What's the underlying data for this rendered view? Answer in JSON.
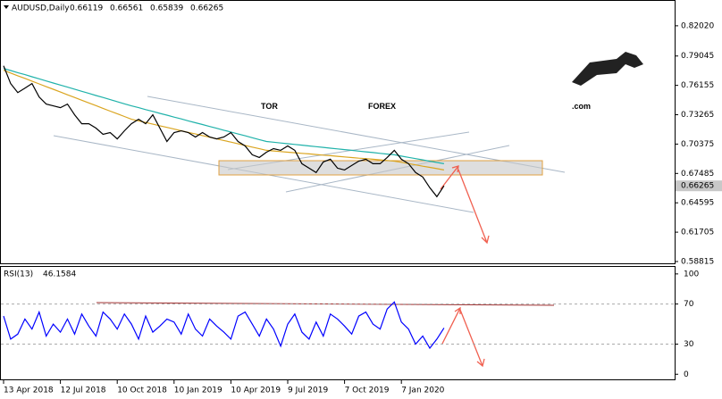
{
  "chart_data": [
    {
      "type": "line",
      "title": "AUDUSD,Daily",
      "ohlc": [
        0.66119,
        0.66561,
        0.65839,
        0.66265
      ],
      "watermark": [
        "TOR",
        "FOREX",
        ".com"
      ],
      "categories": [
        "13 Apr 2018",
        null,
        null,
        null,
        null,
        null,
        null,
        null,
        "12 Jul 2018",
        null,
        null,
        null,
        null,
        null,
        null,
        null,
        "10 Oct 2018",
        null,
        null,
        null,
        null,
        null,
        null,
        null,
        "10 Jan 2019",
        null,
        null,
        null,
        null,
        null,
        null,
        null,
        "10 Apr 2019",
        null,
        null,
        null,
        null,
        null,
        null,
        null,
        "9 Jul 2019",
        null,
        null,
        null,
        null,
        null,
        null,
        null,
        "7 Oct 2019",
        null,
        null,
        null,
        null,
        null,
        null,
        null,
        "7 Jan 2020",
        null,
        null,
        null,
        null,
        null,
        null
      ],
      "series": [
        {
          "color": "#000000",
          "values": [
            0.7808,
            0.7633,
            0.7545,
            0.7589,
            0.7633,
            0.7501,
            0.7431,
            0.7414,
            0.7396,
            0.7431,
            0.7326,
            0.7238,
            0.7238,
            0.7195,
            0.7133,
            0.7151,
            0.7089,
            0.7168,
            0.7238,
            0.7282,
            0.7238,
            0.7326,
            0.7195,
            0.7063,
            0.7151,
            0.7168,
            0.7151,
            0.7107,
            0.7151,
            0.7107,
            0.7089,
            0.7107,
            0.7151,
            0.7063,
            0.7019,
            0.6932,
            0.6906,
            0.6958,
            0.6993,
            0.6976,
            0.7019,
            0.6976,
            0.6844,
            0.68,
            0.6757,
            0.6862,
            0.6888,
            0.68,
            0.6783,
            0.6827,
            0.687,
            0.6888,
            0.6844,
            0.6844,
            0.6906,
            0.6976,
            0.6888,
            0.6844,
            0.6757,
            0.6713,
            0.6608,
            0.652,
            0.66265
          ]
        },
        {
          "color": "#20b2aa",
          "values": [
            0.7782,
            0.7762,
            0.7741,
            0.7721,
            0.77,
            0.768,
            0.7659,
            0.7639,
            0.7618,
            0.7598,
            0.7578,
            0.7557,
            0.7537,
            0.7516,
            0.7496,
            0.7475,
            0.7455,
            0.7434,
            0.7414,
            0.7396,
            0.7377,
            0.7359,
            0.734,
            0.7322,
            0.7303,
            0.7285,
            0.7266,
            0.7248,
            0.723,
            0.7211,
            0.7193,
            0.7174,
            0.7156,
            0.7137,
            0.7119,
            0.71,
            0.7082,
            0.7063,
            0.7056,
            0.7048,
            0.7041,
            0.7034,
            0.7027,
            0.7019,
            0.7012,
            0.7005,
            0.6997,
            0.699,
            0.6983,
            0.6976,
            0.6968,
            0.6961,
            0.6954,
            0.6946,
            0.6939,
            0.6932,
            0.6919,
            0.6907,
            0.6894,
            0.6882,
            0.6869,
            0.6857,
            0.6844
          ]
        },
        {
          "color": "#daa520",
          "values": [
            0.7764,
            0.7737,
            0.771,
            0.7684,
            0.7657,
            0.763,
            0.7603,
            0.7577,
            0.755,
            0.7523,
            0.7496,
            0.7469,
            0.7443,
            0.7416,
            0.7389,
            0.7362,
            0.7336,
            0.7309,
            0.7282,
            0.7266,
            0.725,
            0.7234,
            0.7218,
            0.7202,
            0.7185,
            0.7169,
            0.7153,
            0.7137,
            0.7121,
            0.7105,
            0.7089,
            0.7073,
            0.7057,
            0.704,
            0.7024,
            0.7008,
            0.6992,
            0.6976,
            0.697,
            0.6964,
            0.6958,
            0.6952,
            0.6946,
            0.6941,
            0.6935,
            0.6929,
            0.6923,
            0.6917,
            0.6911,
            0.6905,
            0.6899,
            0.6894,
            0.6888,
            0.6882,
            0.6876,
            0.687,
            0.6858,
            0.6845,
            0.6833,
            0.682,
            0.6808,
            0.6796,
            0.6783
          ]
        }
      ],
      "ylim": [
        0.5855,
        0.8447
      ],
      "yticks": [
        {
          "value": 0.8202,
          "label": "0.82020"
        },
        {
          "value": 0.79045,
          "label": "0.79045"
        },
        {
          "value": 0.76155,
          "label": "0.76155"
        },
        {
          "value": 0.73265,
          "label": "0.73265"
        },
        {
          "value": 0.70375,
          "label": "0.70375"
        },
        {
          "value": 0.67485,
          "label": "0.67485"
        },
        {
          "value": 0.64595,
          "label": "0.64595"
        },
        {
          "value": 0.61705,
          "label": "0.61705"
        },
        {
          "value": 0.58815,
          "label": "0.58815"
        }
      ]
    },
    {
      "type": "line",
      "title": "RSI(13)",
      "color": "#0000ff",
      "values": [
        58,
        35,
        40,
        55,
        45,
        62,
        38,
        50,
        42,
        55,
        40,
        60,
        48,
        38,
        62,
        55,
        45,
        60,
        50,
        35,
        58,
        42,
        48,
        55,
        52,
        40,
        60,
        45,
        38,
        55,
        48,
        42,
        35,
        58,
        62,
        50,
        38,
        55,
        45,
        28,
        50,
        60,
        42,
        35,
        52,
        38,
        60,
        55,
        48,
        40,
        58,
        62,
        50,
        45,
        65,
        72,
        52,
        45,
        30,
        38,
        26,
        35,
        46.1584
      ],
      "ylim": [
        -6,
        107
      ],
      "yticks": [
        100,
        70,
        30,
        0
      ],
      "dashed_levels": [
        70,
        30
      ]
    }
  ]
}
